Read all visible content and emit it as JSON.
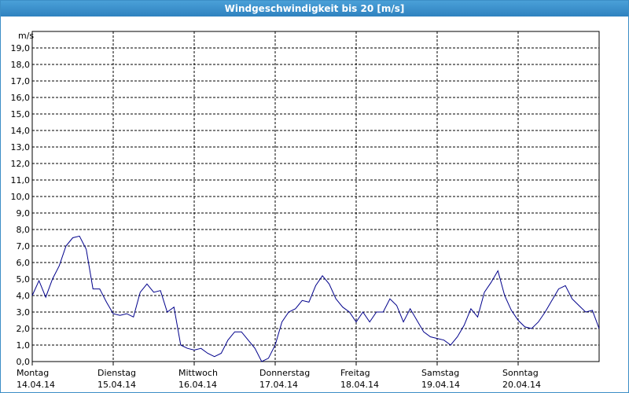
{
  "chart_data": {
    "type": "line",
    "title": "Windgeschwindigkeit bis 20 [m/s]",
    "y_label": "m/s",
    "xlim": [
      0,
      168
    ],
    "xticks": [
      {
        "value": 0,
        "label": "Montag",
        "date": "14.04.14"
      },
      {
        "value": 24,
        "label": "Dienstag",
        "date": "15.04.14"
      },
      {
        "value": 48,
        "label": "Mittwoch",
        "date": "16.04.14"
      },
      {
        "value": 72,
        "label": "Donnerstag",
        "date": "17.04.14"
      },
      {
        "value": 96,
        "label": "Freitag",
        "date": "18.04.14"
      },
      {
        "value": 120,
        "label": "Samstag",
        "date": "19.04.14"
      },
      {
        "value": 144,
        "label": "Sonntag",
        "date": "20.04.14"
      }
    ],
    "ylim": [
      0,
      20
    ],
    "yticks": [
      {
        "value": 0,
        "label": "0,0"
      },
      {
        "value": 1,
        "label": "1,0"
      },
      {
        "value": 2,
        "label": "2,0"
      },
      {
        "value": 3,
        "label": "3,0"
      },
      {
        "value": 4,
        "label": "4,0"
      },
      {
        "value": 5,
        "label": "5,0"
      },
      {
        "value": 6,
        "label": "6,0"
      },
      {
        "value": 7,
        "label": "7,0"
      },
      {
        "value": 8,
        "label": "8,0"
      },
      {
        "value": 9,
        "label": "9,0"
      },
      {
        "value": 10,
        "label": "10,0"
      },
      {
        "value": 11,
        "label": "11,0"
      },
      {
        "value": 12,
        "label": "12,0"
      },
      {
        "value": 13,
        "label": "13,0"
      },
      {
        "value": 14,
        "label": "14,0"
      },
      {
        "value": 15,
        "label": "15,0"
      },
      {
        "value": 16,
        "label": "16,0"
      },
      {
        "value": 17,
        "label": "17,0"
      },
      {
        "value": 18,
        "label": "18,0"
      },
      {
        "value": 19,
        "label": "19,0"
      }
    ],
    "grid": true,
    "series": [
      {
        "color": "#00008b",
        "x": [
          0,
          2,
          4,
          6,
          8,
          10,
          12,
          14,
          16,
          18,
          20,
          22,
          24,
          26,
          28,
          30,
          32,
          34,
          36,
          38,
          40,
          42,
          44,
          46,
          48,
          50,
          52,
          54,
          56,
          58,
          60,
          62,
          64,
          66,
          68,
          70,
          72,
          74,
          76,
          78,
          80,
          82,
          84,
          86,
          88,
          90,
          92,
          94,
          96,
          98,
          100,
          102,
          104,
          106,
          108,
          110,
          112,
          114,
          116,
          118,
          120,
          122,
          124,
          126,
          128,
          130,
          132,
          134,
          136,
          138,
          140,
          142,
          144,
          146,
          148,
          150,
          152,
          154,
          156,
          158,
          160,
          162,
          164,
          166,
          168
        ],
        "values": [
          4.0,
          4.9,
          3.9,
          5.0,
          5.8,
          7.0,
          7.5,
          7.6,
          6.8,
          4.4,
          4.4,
          3.6,
          2.9,
          2.8,
          2.9,
          2.7,
          4.2,
          4.7,
          4.2,
          4.3,
          3.0,
          3.3,
          1.0,
          0.8,
          0.7,
          0.8,
          0.5,
          0.3,
          0.5,
          1.3,
          1.8,
          1.8,
          1.3,
          0.8,
          0.0,
          0.2,
          1.0,
          2.4,
          3.0,
          3.2,
          3.7,
          3.6,
          4.6,
          5.2,
          4.7,
          3.8,
          3.3,
          3.0,
          2.4,
          3.0,
          2.4,
          3.0,
          3.0,
          3.8,
          3.4,
          2.4,
          3.2,
          2.5,
          1.8,
          1.5,
          1.4,
          1.3,
          1.0,
          1.5,
          2.2,
          3.2,
          2.7,
          4.2,
          4.8,
          5.5,
          4.0,
          3.1,
          2.5,
          2.1,
          2.0,
          2.4,
          3.0,
          3.7,
          4.4,
          4.6,
          3.8,
          3.4,
          3.0,
          3.1,
          2.0
        ]
      }
    ]
  }
}
